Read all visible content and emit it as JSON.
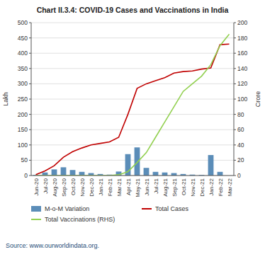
{
  "chart_data": {
    "type": "bar",
    "title": "Chart II.3.4: COVID-19 Cases and Vaccinations in India",
    "source": "Source: www.ourworldindata.org.",
    "categories": [
      "Jun-20",
      "Jul-20",
      "Aug-20",
      "Sep-20",
      "Oct-20",
      "Nov-20",
      "Dec-20",
      "Jan-21",
      "Feb-21",
      "Mar-21",
      "Apr-21",
      "May-21",
      "Jun-21",
      "Jul-21",
      "Aug-21",
      "Sep-21",
      "Oct-21",
      "Nov-21",
      "Dec-21",
      "Jan-22",
      "Feb-22",
      "Mar-22"
    ],
    "series": [
      {
        "name": "M-o-M Variation",
        "type": "bar",
        "color": "#5B8DB8",
        "values": [
          2,
          10,
          20,
          27,
          18,
          12,
          8,
          5,
          3,
          13,
          70,
          92,
          25,
          12,
          10,
          8,
          5,
          3,
          2,
          67,
          12,
          0
        ]
      },
      {
        "name": "Total Cases",
        "type": "line",
        "color": "#C00000",
        "values": [
          3,
          15,
          32,
          60,
          78,
          90,
          100,
          105,
          110,
          125,
          200,
          285,
          300,
          310,
          320,
          335,
          340,
          342,
          348,
          352,
          428,
          430
        ]
      },
      {
        "name": "Total Vaccinations (RHS)",
        "type": "line",
        "color": "#92D050",
        "axis": "y2",
        "values": [
          0,
          0,
          0,
          0,
          0,
          0,
          0,
          0,
          0,
          1,
          5,
          17,
          30,
          50,
          70,
          90,
          110,
          120,
          130,
          145,
          170,
          185
        ]
      }
    ],
    "ylabel": "Lakh",
    "y2label": "Crore",
    "ylim": [
      0,
      500
    ],
    "yticks": [
      0,
      50,
      100,
      150,
      200,
      250,
      300,
      350,
      400,
      450,
      500
    ],
    "y2lim": [
      0,
      200
    ],
    "y2ticks": [
      0,
      20,
      40,
      60,
      80,
      100,
      120,
      140,
      160,
      180,
      200
    ],
    "grid": true,
    "legend": "bottom"
  }
}
